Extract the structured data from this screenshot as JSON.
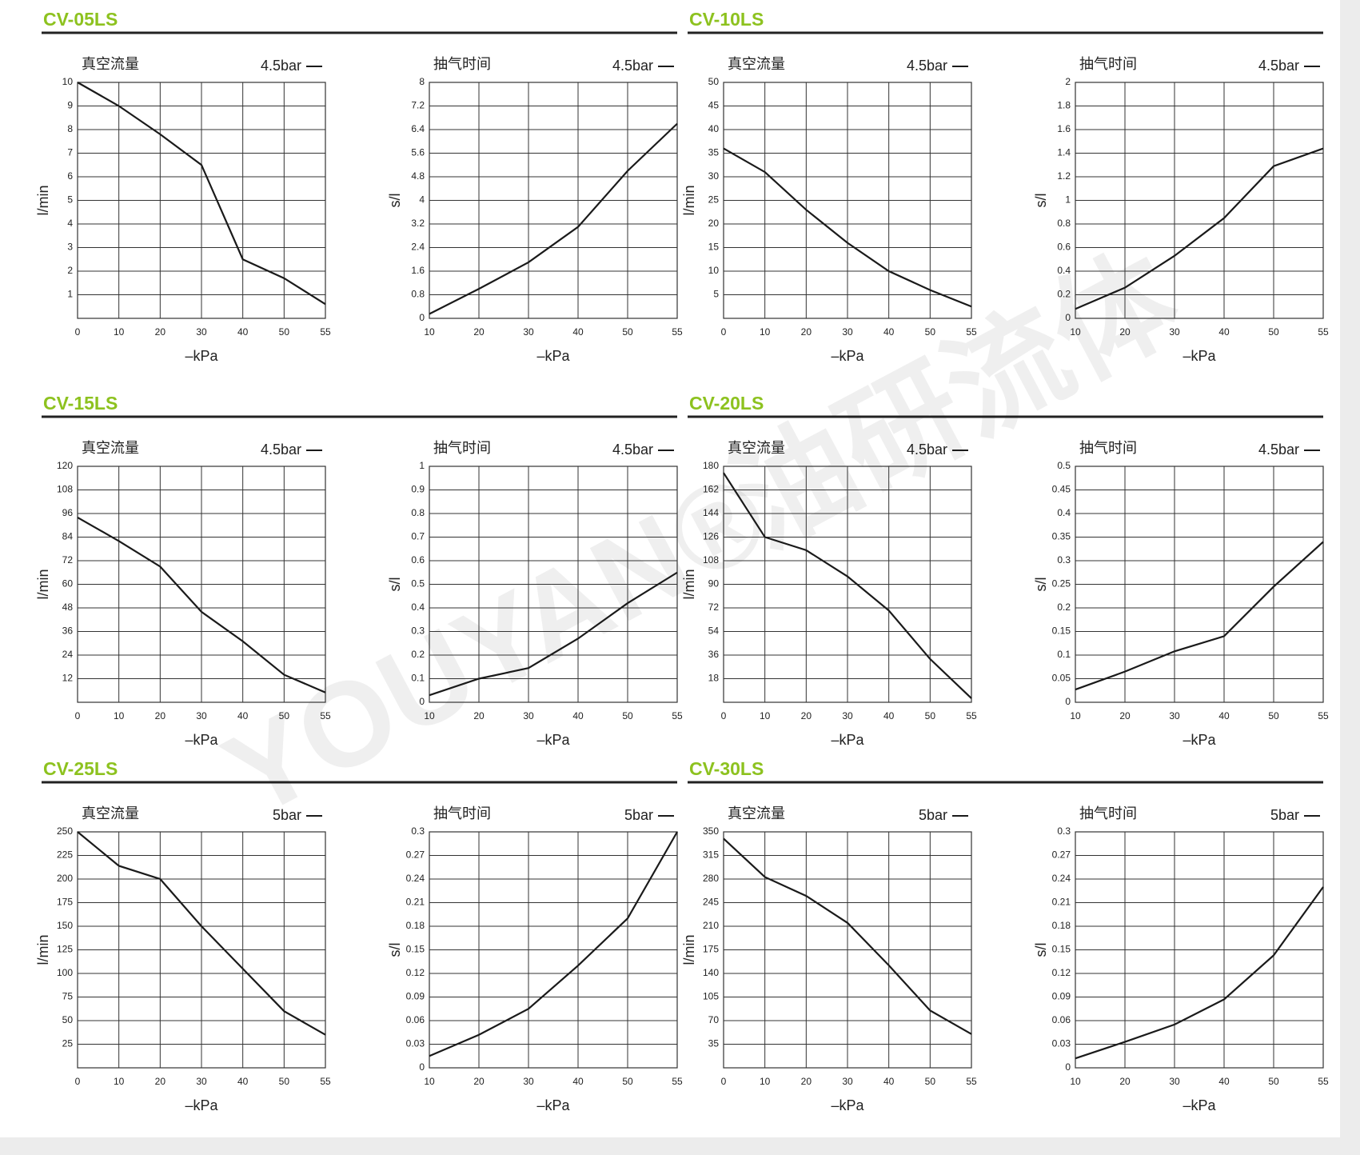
{
  "watermark": [
    "YOUYAN®",
    "油研流体"
  ],
  "sections": [
    {
      "title": "CV-05LS"
    },
    {
      "title": "CV-10LS"
    },
    {
      "title": "CV-15LS"
    },
    {
      "title": "CV-20LS"
    },
    {
      "title": "CV-25LS"
    },
    {
      "title": "CV-30LS"
    }
  ],
  "chart_data": [
    {
      "type": "line",
      "title": "真空流量",
      "x_label": "–kPa",
      "y_label": "l/min",
      "categories": [
        "0",
        "10",
        "20",
        "30",
        "40",
        "50",
        "55"
      ],
      "series": [
        {
          "name": "4.5bar",
          "color": "#1a1a1a",
          "values": [
            10,
            9,
            7.8,
            6.5,
            2.5,
            1.7,
            0.6
          ]
        }
      ],
      "ylim": [
        0,
        10
      ],
      "yticks": [
        1,
        2,
        3,
        4,
        5,
        6,
        7,
        8,
        9,
        10
      ],
      "grid": true
    },
    {
      "type": "line",
      "title": "抽气时间",
      "x_label": "–kPa",
      "y_label": "s/l",
      "categories": [
        "10",
        "20",
        "30",
        "40",
        "50",
        "55"
      ],
      "series": [
        {
          "name": "4.5bar",
          "color": "#1a1a1a",
          "values": [
            0.15,
            1.0,
            1.9,
            3.1,
            5.0,
            6.6
          ]
        }
      ],
      "ylim": [
        0,
        8
      ],
      "yticks": [
        0,
        0.8,
        1.6,
        2.4,
        3.2,
        4,
        4.8,
        5.6,
        6.4,
        7.2,
        8
      ],
      "grid": true
    },
    {
      "type": "line",
      "title": "真空流量",
      "x_label": "–kPa",
      "y_label": "l/min",
      "categories": [
        "0",
        "10",
        "20",
        "30",
        "40",
        "50",
        "55"
      ],
      "series": [
        {
          "name": "4.5bar",
          "color": "#1a1a1a",
          "values": [
            36,
            31,
            23,
            16,
            10,
            6,
            2.5
          ]
        }
      ],
      "ylim": [
        0,
        50
      ],
      "yticks": [
        5,
        10,
        15,
        20,
        25,
        30,
        35,
        40,
        45,
        50
      ],
      "grid": true
    },
    {
      "type": "line",
      "title": "抽气时间",
      "x_label": "–kPa",
      "y_label": "s/l",
      "categories": [
        "10",
        "20",
        "30",
        "40",
        "50",
        "55"
      ],
      "series": [
        {
          "name": "4.5bar",
          "color": "#1a1a1a",
          "values": [
            0.08,
            0.26,
            0.53,
            0.85,
            1.29,
            1.44
          ]
        }
      ],
      "ylim": [
        0,
        2
      ],
      "yticks": [
        0,
        0.2,
        0.4,
        0.6,
        0.8,
        1,
        1.2,
        1.4,
        1.6,
        1.8,
        2
      ],
      "grid": true
    },
    {
      "type": "line",
      "title": "真空流量",
      "x_label": "–kPa",
      "y_label": "l/min",
      "categories": [
        "0",
        "10",
        "20",
        "30",
        "40",
        "50",
        "55"
      ],
      "series": [
        {
          "name": "4.5bar",
          "color": "#1a1a1a",
          "values": [
            94,
            82,
            69,
            46,
            31,
            14,
            5
          ]
        }
      ],
      "ylim": [
        0,
        120
      ],
      "yticks": [
        12,
        24,
        36,
        48,
        60,
        72,
        84,
        96,
        108,
        120
      ],
      "grid": true
    },
    {
      "type": "line",
      "title": "抽气时间",
      "x_label": "–kPa",
      "y_label": "s/l",
      "categories": [
        "10",
        "20",
        "30",
        "40",
        "50",
        "55"
      ],
      "series": [
        {
          "name": "4.5bar",
          "color": "#1a1a1a",
          "values": [
            0.03,
            0.1,
            0.145,
            0.27,
            0.42,
            0.55
          ]
        }
      ],
      "ylim": [
        0,
        1
      ],
      "yticks": [
        0,
        0.1,
        0.2,
        0.3,
        0.4,
        0.5,
        0.6,
        0.7,
        0.8,
        0.9,
        1
      ],
      "grid": true
    },
    {
      "type": "line",
      "title": "真空流量",
      "x_label": "–kPa",
      "y_label": "l/min",
      "categories": [
        "0",
        "10",
        "20",
        "30",
        "40",
        "50",
        "55"
      ],
      "series": [
        {
          "name": "4.5bar",
          "color": "#1a1a1a",
          "values": [
            175,
            126,
            116,
            96,
            70,
            33,
            3
          ]
        }
      ],
      "ylim": [
        0,
        180
      ],
      "yticks": [
        18,
        36,
        54,
        72,
        90,
        108,
        126,
        144,
        162,
        180
      ],
      "grid": true
    },
    {
      "type": "line",
      "title": "抽气时间",
      "x_label": "–kPa",
      "y_label": "s/l",
      "categories": [
        "10",
        "20",
        "30",
        "40",
        "50",
        "55"
      ],
      "series": [
        {
          "name": "4.5bar",
          "color": "#1a1a1a",
          "values": [
            0.027,
            0.065,
            0.108,
            0.14,
            0.245,
            0.34
          ]
        }
      ],
      "ylim": [
        0,
        0.5
      ],
      "yticks": [
        0,
        0.05,
        0.1,
        0.15,
        0.2,
        0.25,
        0.3,
        0.35,
        0.4,
        0.45,
        0.5
      ],
      "grid": true
    },
    {
      "type": "line",
      "title": "真空流量",
      "x_label": "–kPa",
      "y_label": "l/min",
      "categories": [
        "0",
        "10",
        "20",
        "30",
        "40",
        "50",
        "55"
      ],
      "series": [
        {
          "name": "5bar",
          "color": "#1a1a1a",
          "values": [
            250,
            214,
            200,
            150,
            105,
            60,
            35
          ]
        }
      ],
      "ylim": [
        0,
        250
      ],
      "yticks": [
        25,
        50,
        75,
        100,
        125,
        150,
        175,
        200,
        225,
        250
      ],
      "grid": true
    },
    {
      "type": "line",
      "title": "抽气时间",
      "x_label": "–kPa",
      "y_label": "s/l",
      "categories": [
        "10",
        "20",
        "30",
        "40",
        "50",
        "55"
      ],
      "series": [
        {
          "name": "5bar",
          "color": "#1a1a1a",
          "values": [
            0.015,
            0.042,
            0.075,
            0.13,
            0.19,
            0.3
          ]
        }
      ],
      "ylim": [
        0,
        0.3
      ],
      "yticks": [
        0,
        0.03,
        0.06,
        0.09,
        0.12,
        0.15,
        0.18,
        0.21,
        0.24,
        0.27,
        0.3
      ],
      "grid": true
    },
    {
      "type": "line",
      "title": "真空流量",
      "x_label": "–kPa",
      "y_label": "l/min",
      "categories": [
        "0",
        "10",
        "20",
        "30",
        "40",
        "50",
        "55"
      ],
      "series": [
        {
          "name": "5bar",
          "color": "#1a1a1a",
          "values": [
            340,
            283,
            255,
            215,
            152,
            85,
            50
          ]
        }
      ],
      "ylim": [
        0,
        350
      ],
      "yticks": [
        35,
        70,
        105,
        140,
        175,
        210,
        245,
        280,
        315,
        350
      ],
      "grid": true
    },
    {
      "type": "line",
      "title": "抽气时间",
      "x_label": "–kPa",
      "y_label": "s/l",
      "categories": [
        "10",
        "20",
        "30",
        "40",
        "50",
        "55"
      ],
      "series": [
        {
          "name": "5bar",
          "color": "#1a1a1a",
          "values": [
            0.012,
            0.033,
            0.055,
            0.087,
            0.143,
            0.23
          ]
        }
      ],
      "ylim": [
        0,
        0.3
      ],
      "yticks": [
        0,
        0.03,
        0.06,
        0.09,
        0.12,
        0.15,
        0.18,
        0.21,
        0.24,
        0.27,
        0.3
      ],
      "grid": true
    }
  ]
}
